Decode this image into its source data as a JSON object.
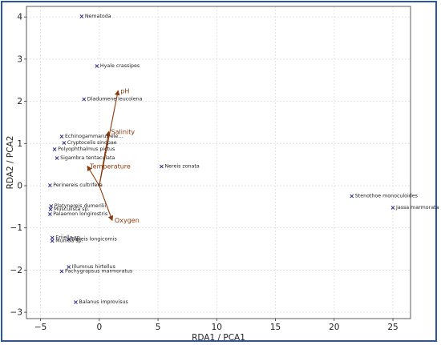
{
  "chart_data": {
    "type": "scatter",
    "title": "",
    "xlabel": "RDA1 / PCA1",
    "ylabel": "RDA2 / PCA2",
    "xlim": [
      -6.2,
      26.5
    ],
    "ylim": [
      -3.15,
      4.25
    ],
    "xticks": [
      -5,
      0,
      5,
      10,
      15,
      20,
      25
    ],
    "yticks": [
      -3,
      -2,
      -1,
      0,
      1,
      2,
      3,
      4
    ],
    "grid": true,
    "legend": "none",
    "colors": {
      "species_marker": "#1b1b7e",
      "env_arrow": "#8b3a0c",
      "grid": "#d9d9d9",
      "frame": "#2a56a6"
    },
    "species": [
      {
        "name": "Nematoda",
        "x": -1.5,
        "y": 4.02
      },
      {
        "name": "Hyale crassipes",
        "x": -0.2,
        "y": 2.85
      },
      {
        "name": "Dladumene leucolena",
        "x": -1.3,
        "y": 2.06
      },
      {
        "name": "Echinogammarus ele...",
        "x": -3.2,
        "y": 1.18
      },
      {
        "name": "Cryptocelis sinopae",
        "x": -3.0,
        "y": 1.02
      },
      {
        "name": "Polyophthalmus pictus",
        "x": -3.8,
        "y": 0.87
      },
      {
        "name": "Sigambra tentaculata",
        "x": -3.6,
        "y": 0.66
      },
      {
        "name": "Nereis zonata",
        "x": 5.3,
        "y": 0.46
      },
      {
        "name": "Perinereis cultrifera",
        "x": -4.2,
        "y": 0.02
      },
      {
        "name": "Platynereis dumerilii",
        "x": -4.1,
        "y": -0.47
      },
      {
        "name": "Musculista sp.",
        "x": -4.15,
        "y": -0.55
      },
      {
        "name": "Palaemon longirostris",
        "x": -4.2,
        "y": -0.66
      },
      {
        "name": "Stenothoe monoculoides",
        "x": 21.5,
        "y": -0.24
      },
      {
        "name": "Jassa marmorata",
        "x": 25.0,
        "y": -0.51
      },
      {
        "name": "Eriiella sp.",
        "x": -4.0,
        "y": -1.22
      },
      {
        "name": "Nereis longicornis",
        "x": -2.6,
        "y": -1.26
      },
      {
        "name": "Munida sp.",
        "x": -4.0,
        "y": -1.3
      },
      {
        "name": "Illumnus hirtellus",
        "x": -2.6,
        "y": -1.92
      },
      {
        "name": "Pachygrapsus marmoratus",
        "x": -3.2,
        "y": -2.02
      },
      {
        "name": "Balanus improvisus",
        "x": -2.0,
        "y": -2.75
      }
    ],
    "environmental_vectors": [
      {
        "name": "pH",
        "x": 1.6,
        "y": 2.25
      },
      {
        "name": "Salinity",
        "x": 0.8,
        "y": 1.28
      },
      {
        "name": "Temperature",
        "x": -1.0,
        "y": 0.46
      },
      {
        "name": "Oxygen",
        "x": 1.1,
        "y": -0.82
      }
    ]
  }
}
